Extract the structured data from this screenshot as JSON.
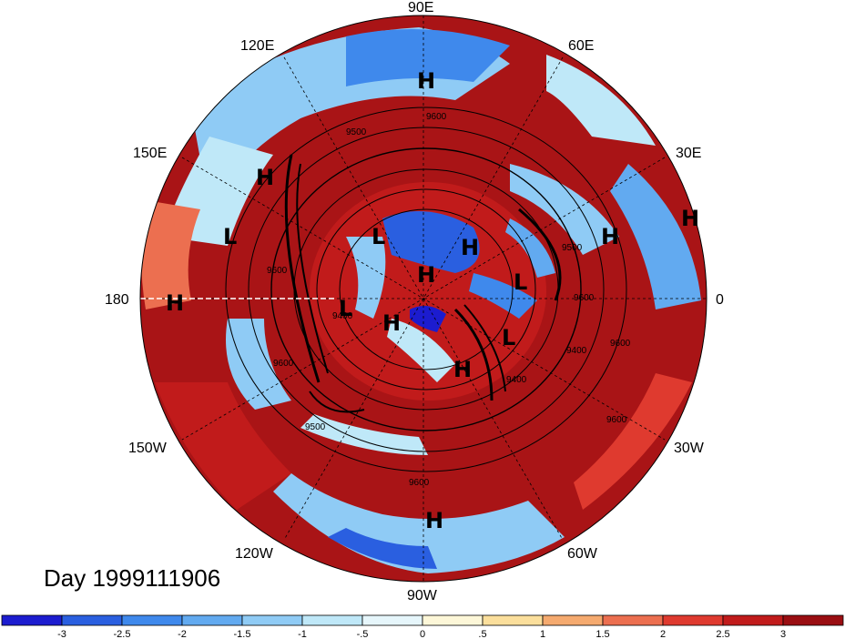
{
  "title": "Day 1999111906",
  "longitude_labels": [
    {
      "id": "lon-90e",
      "text": "90E"
    },
    {
      "id": "lon-60e",
      "text": "60E"
    },
    {
      "id": "lon-30e",
      "text": "30E"
    },
    {
      "id": "lon-0",
      "text": "0"
    },
    {
      "id": "lon-30w",
      "text": "30W"
    },
    {
      "id": "lon-60w",
      "text": "60W"
    },
    {
      "id": "lon-90w",
      "text": "90W"
    },
    {
      "id": "lon-120w",
      "text": "120W"
    },
    {
      "id": "lon-150w",
      "text": "150W"
    },
    {
      "id": "lon-180",
      "text": "180"
    },
    {
      "id": "lon-150e",
      "text": "150E"
    },
    {
      "id": "lon-120e",
      "text": "120E"
    }
  ],
  "pressure_centers": [
    "H",
    "H",
    "H",
    "L",
    "L",
    "H",
    "H",
    "H",
    "L",
    "L",
    "H",
    "H",
    "L",
    "H",
    "H"
  ],
  "contour_labels": [
    "9600",
    "9500",
    "9600",
    "9400",
    "9600",
    "9400",
    "9500",
    "9600",
    "9400",
    "9600",
    "9600",
    "9500",
    "9600"
  ],
  "colorbar": {
    "ticks": [
      "-3",
      "-2.5",
      "-2",
      "-1.5",
      "-1",
      "-.5",
      "0",
      ".5",
      "1",
      "1.5",
      "2",
      "2.5",
      "3"
    ],
    "colors": [
      "#1c1ccf",
      "#2a5fe0",
      "#3f89ec",
      "#62aaf0",
      "#8fcbf5",
      "#bfe8f8",
      "#e6f6fb",
      "#fdf7d8",
      "#fbdf9c",
      "#f5aa6f",
      "#ec6f50",
      "#df3a2f",
      "#c11b1b",
      "#9a0e12"
    ]
  }
}
